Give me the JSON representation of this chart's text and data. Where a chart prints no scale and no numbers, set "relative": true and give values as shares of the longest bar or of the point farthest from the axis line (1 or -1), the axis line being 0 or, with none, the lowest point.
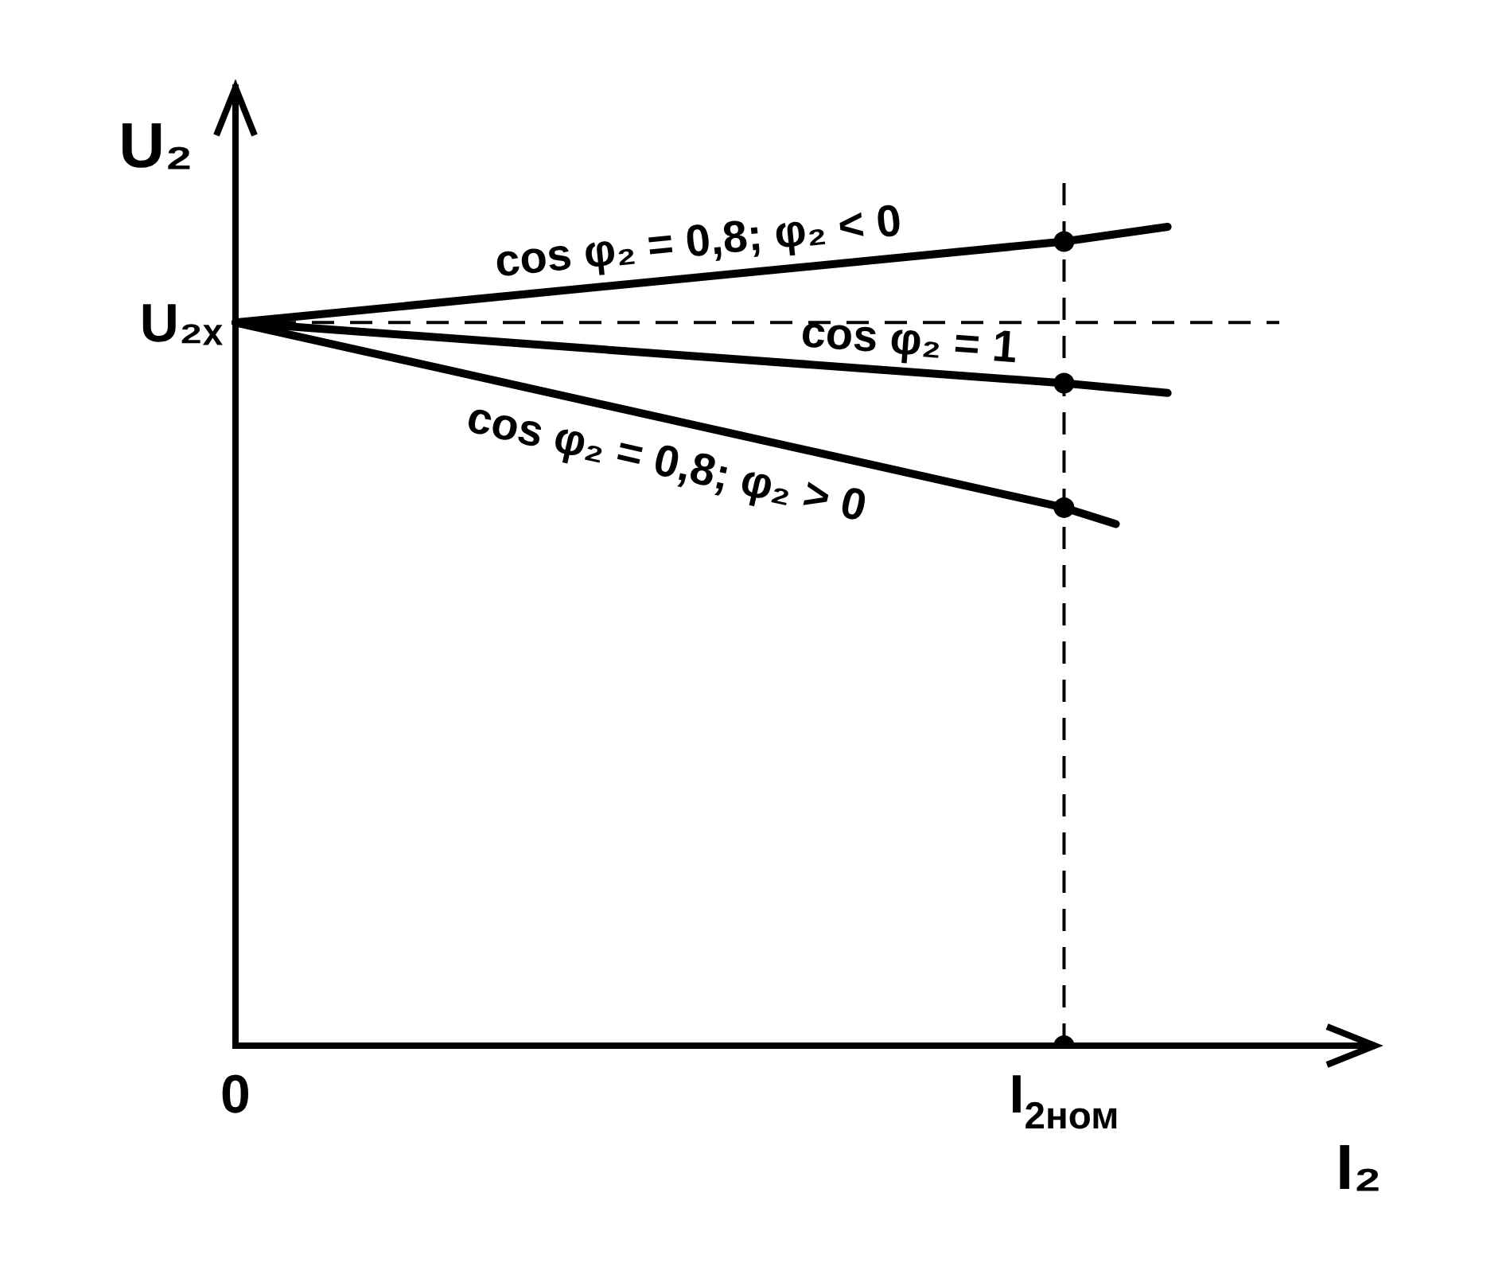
{
  "chart_data": {
    "type": "line",
    "relative": true,
    "xlabel": "I₂",
    "ylabel": "U₂",
    "categories": [
      "0",
      null,
      null,
      null,
      null,
      null,
      null,
      null,
      null,
      null,
      null,
      null,
      null,
      null,
      null,
      null,
      "I$_{2ном}$",
      null,
      null,
      null,
      null,
      null,
      null
    ],
    "series": [
      {
        "name": "cos φ₂ = 0,8; φ₂ < 0",
        "color": "#000000",
        "values": [
          0.883,
          null,
          null,
          null,
          null,
          null,
          null,
          null,
          null,
          null,
          null,
          null,
          null,
          null,
          null,
          null,
          0.982,
          null,
          1,
          null,
          null,
          null,
          null
        ]
      },
      {
        "name": "cos φ₂ = 1",
        "color": "#000000",
        "values": [
          0.883,
          null,
          null,
          null,
          null,
          null,
          null,
          null,
          null,
          null,
          null,
          null,
          null,
          null,
          null,
          null,
          0.809,
          null,
          0.797,
          null,
          null,
          null,
          null
        ]
      },
      {
        "name": "cos φ₂ = 0,8; φ₂ > 0",
        "color": "#000000",
        "values": [
          0.883,
          null,
          null,
          null,
          null,
          null,
          null,
          null,
          null,
          null,
          null,
          null,
          null,
          null,
          null,
          null,
          0.657,
          0.637,
          null,
          null,
          null,
          null,
          null
        ]
      },
      {
        "type": "scatter",
        "color": "#000000",
        "marker": "circle",
        "x": [
          "I$_{2ном}$",
          "I$_{2ном}$",
          "I$_{2ном}$",
          "I$_{2ном}$"
        ],
        "values": [
          0.982,
          0.809,
          0.657,
          0
        ]
      }
    ],
    "ref_lines": [
      {
        "axis": "y",
        "value": 0.883,
        "label": "U₂ₓ",
        "line_style": "dashed",
        "color": "#000000"
      },
      {
        "axis": "x",
        "value": "I$_{2ном}$",
        "label": null,
        "line_style": "dashed",
        "color": "#000000"
      }
    ],
    "marker": "none",
    "line_style": "solid",
    "grid": false,
    "legend": false
  }
}
